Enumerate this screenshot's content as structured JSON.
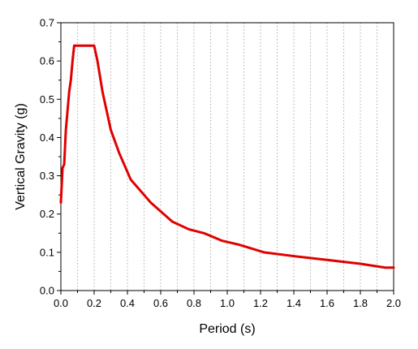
{
  "chart_data": {
    "type": "line",
    "title": "",
    "xlabel": "Period (s)",
    "ylabel": "Vertical Gravity (g)",
    "xlim": [
      0,
      2.0
    ],
    "ylim": [
      0,
      0.7
    ],
    "x_ticks": [
      "0.0",
      "0.2",
      "0.4",
      "0.6",
      "0.8",
      "1.0",
      "1.2",
      "1.4",
      "1.6",
      "1.8",
      "2.0"
    ],
    "y_ticks": [
      "0.0",
      "0.1",
      "0.2",
      "0.3",
      "0.4",
      "0.5",
      "0.6",
      "0.7"
    ],
    "grid": "vertical dotted lines at major and minor x positions",
    "legend": "none",
    "line_color": "#e00000",
    "series": [
      {
        "x": [
          0.0,
          0.01,
          0.02,
          0.03,
          0.04,
          0.05,
          0.06,
          0.07,
          0.08,
          0.2,
          0.22,
          0.25,
          0.3,
          0.35,
          0.42,
          0.54,
          0.67,
          0.77,
          0.86,
          0.97,
          1.07,
          1.22,
          1.4,
          1.6,
          1.8,
          1.95,
          2.0
        ],
        "y": [
          0.23,
          0.32,
          0.33,
          0.42,
          0.47,
          0.52,
          0.55,
          0.6,
          0.64,
          0.64,
          0.6,
          0.52,
          0.42,
          0.36,
          0.29,
          0.23,
          0.18,
          0.16,
          0.15,
          0.13,
          0.12,
          0.1,
          0.09,
          0.08,
          0.07,
          0.06,
          0.06
        ]
      }
    ]
  }
}
